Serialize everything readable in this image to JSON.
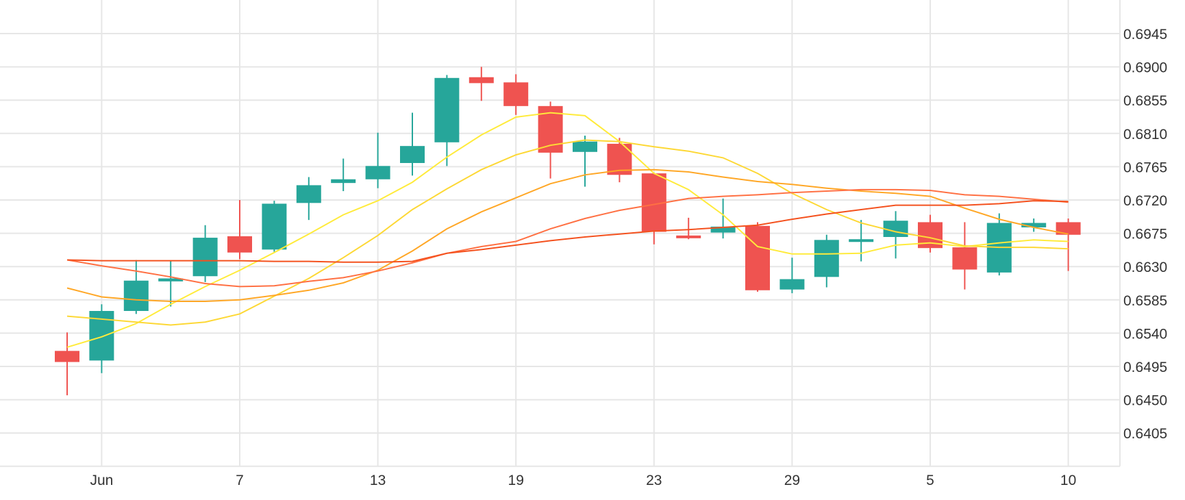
{
  "chart_data": {
    "type": "candlestick",
    "x_ticks": [
      "Jun",
      "7",
      "13",
      "19",
      "23",
      "29",
      "5",
      "10"
    ],
    "y_ticks": [
      "0.6945",
      "0.6900",
      "0.6855",
      "0.6810",
      "0.6765",
      "0.6720",
      "0.6675",
      "0.6630",
      "0.6585",
      "0.6540",
      "0.6495",
      "0.6450",
      "0.6405"
    ],
    "ylim": [
      0.636,
      0.699
    ],
    "grid": true,
    "colors": {
      "up": "#26a69a",
      "down": "#ef5350",
      "grid": "#e6e6e6"
    },
    "candles": [
      {
        "x": 0,
        "o": 0.6516,
        "h": 0.6541,
        "l": 0.6456,
        "c": 0.6501
      },
      {
        "x": 1,
        "o": 0.6503,
        "h": 0.6579,
        "l": 0.6486,
        "c": 0.657
      },
      {
        "x": 2,
        "o": 0.657,
        "h": 0.6639,
        "l": 0.6566,
        "c": 0.6611
      },
      {
        "x": 3,
        "o": 0.661,
        "h": 0.6638,
        "l": 0.6576,
        "c": 0.6614
      },
      {
        "x": 4,
        "o": 0.6617,
        "h": 0.6686,
        "l": 0.6609,
        "c": 0.6669
      },
      {
        "x": 5,
        "o": 0.6671,
        "h": 0.672,
        "l": 0.664,
        "c": 0.6649
      },
      {
        "x": 6,
        "o": 0.6653,
        "h": 0.6719,
        "l": 0.665,
        "c": 0.6715
      },
      {
        "x": 7,
        "o": 0.6716,
        "h": 0.6751,
        "l": 0.6693,
        "c": 0.674
      },
      {
        "x": 8,
        "o": 0.6743,
        "h": 0.6776,
        "l": 0.6732,
        "c": 0.6748
      },
      {
        "x": 9,
        "o": 0.6748,
        "h": 0.6811,
        "l": 0.6736,
        "c": 0.6766
      },
      {
        "x": 10,
        "o": 0.677,
        "h": 0.6838,
        "l": 0.6753,
        "c": 0.6793
      },
      {
        "x": 11,
        "o": 0.6798,
        "h": 0.6889,
        "l": 0.6766,
        "c": 0.6885
      },
      {
        "x": 12,
        "o": 0.6886,
        "h": 0.69,
        "l": 0.6854,
        "c": 0.6878
      },
      {
        "x": 13,
        "o": 0.6879,
        "h": 0.689,
        "l": 0.6835,
        "c": 0.6847
      },
      {
        "x": 14,
        "o": 0.6847,
        "h": 0.6853,
        "l": 0.6749,
        "c": 0.6784
      },
      {
        "x": 15,
        "o": 0.6785,
        "h": 0.6807,
        "l": 0.6738,
        "c": 0.6799
      },
      {
        "x": 16,
        "o": 0.6796,
        "h": 0.6804,
        "l": 0.6744,
        "c": 0.6754
      },
      {
        "x": 17,
        "o": 0.6756,
        "h": 0.6757,
        "l": 0.666,
        "c": 0.6677
      },
      {
        "x": 18,
        "o": 0.6672,
        "h": 0.6696,
        "l": 0.6667,
        "c": 0.6669
      },
      {
        "x": 19,
        "o": 0.6676,
        "h": 0.6722,
        "l": 0.6668,
        "c": 0.6684
      },
      {
        "x": 20,
        "o": 0.6685,
        "h": 0.669,
        "l": 0.6596,
        "c": 0.6598
      },
      {
        "x": 21,
        "o": 0.6599,
        "h": 0.6642,
        "l": 0.6594,
        "c": 0.6613
      },
      {
        "x": 22,
        "o": 0.6616,
        "h": 0.6673,
        "l": 0.6602,
        "c": 0.6666
      },
      {
        "x": 23,
        "o": 0.6664,
        "h": 0.6693,
        "l": 0.6637,
        "c": 0.6667
      },
      {
        "x": 24,
        "o": 0.667,
        "h": 0.6705,
        "l": 0.6641,
        "c": 0.6692
      },
      {
        "x": 25,
        "o": 0.669,
        "h": 0.67,
        "l": 0.6649,
        "c": 0.6655
      },
      {
        "x": 26,
        "o": 0.6656,
        "h": 0.669,
        "l": 0.6599,
        "c": 0.6626
      },
      {
        "x": 27,
        "o": 0.6622,
        "h": 0.6702,
        "l": 0.6618,
        "c": 0.6689
      },
      {
        "x": 28,
        "o": 0.6683,
        "h": 0.6695,
        "l": 0.6677,
        "c": 0.6689
      },
      {
        "x": 29,
        "o": 0.669,
        "h": 0.6695,
        "l": 0.6624,
        "c": 0.6673
      }
    ],
    "series": [
      {
        "color": "#ffeb3b",
        "values": [
          0.6521,
          0.6535,
          0.6553,
          0.6579,
          0.6603,
          0.6625,
          0.6649,
          0.6674,
          0.67,
          0.6719,
          0.6744,
          0.6778,
          0.6808,
          0.6832,
          0.6838,
          0.6834,
          0.6799,
          0.6756,
          0.6734,
          0.67,
          0.6657,
          0.6647,
          0.6647,
          0.6648,
          0.6659,
          0.6662,
          0.6657,
          0.6662,
          0.6666,
          0.6664
        ]
      },
      {
        "color": "#fdd835",
        "values": [
          0.6563,
          0.6559,
          0.6555,
          0.6551,
          0.6555,
          0.6566,
          0.659,
          0.6614,
          0.6642,
          0.6672,
          0.6707,
          0.6735,
          0.6761,
          0.6781,
          0.6794,
          0.6801,
          0.6799,
          0.6792,
          0.6786,
          0.6777,
          0.6756,
          0.6729,
          0.6707,
          0.6689,
          0.6677,
          0.6669,
          0.6658,
          0.6656,
          0.6656,
          0.6654
        ]
      },
      {
        "color": "#ffa726",
        "values": [
          0.6601,
          0.6589,
          0.6585,
          0.6583,
          0.6583,
          0.6585,
          0.6591,
          0.6598,
          0.6608,
          0.6625,
          0.6651,
          0.6681,
          0.6704,
          0.6723,
          0.6742,
          0.6754,
          0.676,
          0.6761,
          0.6758,
          0.6751,
          0.6745,
          0.6741,
          0.6736,
          0.6732,
          0.6729,
          0.6725,
          0.6709,
          0.6694,
          0.6683,
          0.6674
        ]
      },
      {
        "color": "#ff7043",
        "values": [
          0.6639,
          0.6631,
          0.6624,
          0.6616,
          0.6607,
          0.6603,
          0.6604,
          0.661,
          0.6615,
          0.6624,
          0.6635,
          0.6648,
          0.6657,
          0.6664,
          0.6681,
          0.6695,
          0.6706,
          0.6714,
          0.6722,
          0.6725,
          0.6727,
          0.673,
          0.6732,
          0.6734,
          0.6734,
          0.6733,
          0.6727,
          0.6725,
          0.6721,
          0.6717
        ]
      },
      {
        "color": "#f4511e",
        "values": [
          0.6639,
          0.6638,
          0.6638,
          0.6638,
          0.6638,
          0.6638,
          0.6637,
          0.6637,
          0.6636,
          0.6636,
          0.6637,
          0.6648,
          0.6653,
          0.6659,
          0.6665,
          0.667,
          0.6674,
          0.6678,
          0.668,
          0.6683,
          0.6686,
          0.6694,
          0.6701,
          0.6707,
          0.6713,
          0.6713,
          0.6713,
          0.6715,
          0.6719,
          0.6718
        ]
      }
    ]
  }
}
